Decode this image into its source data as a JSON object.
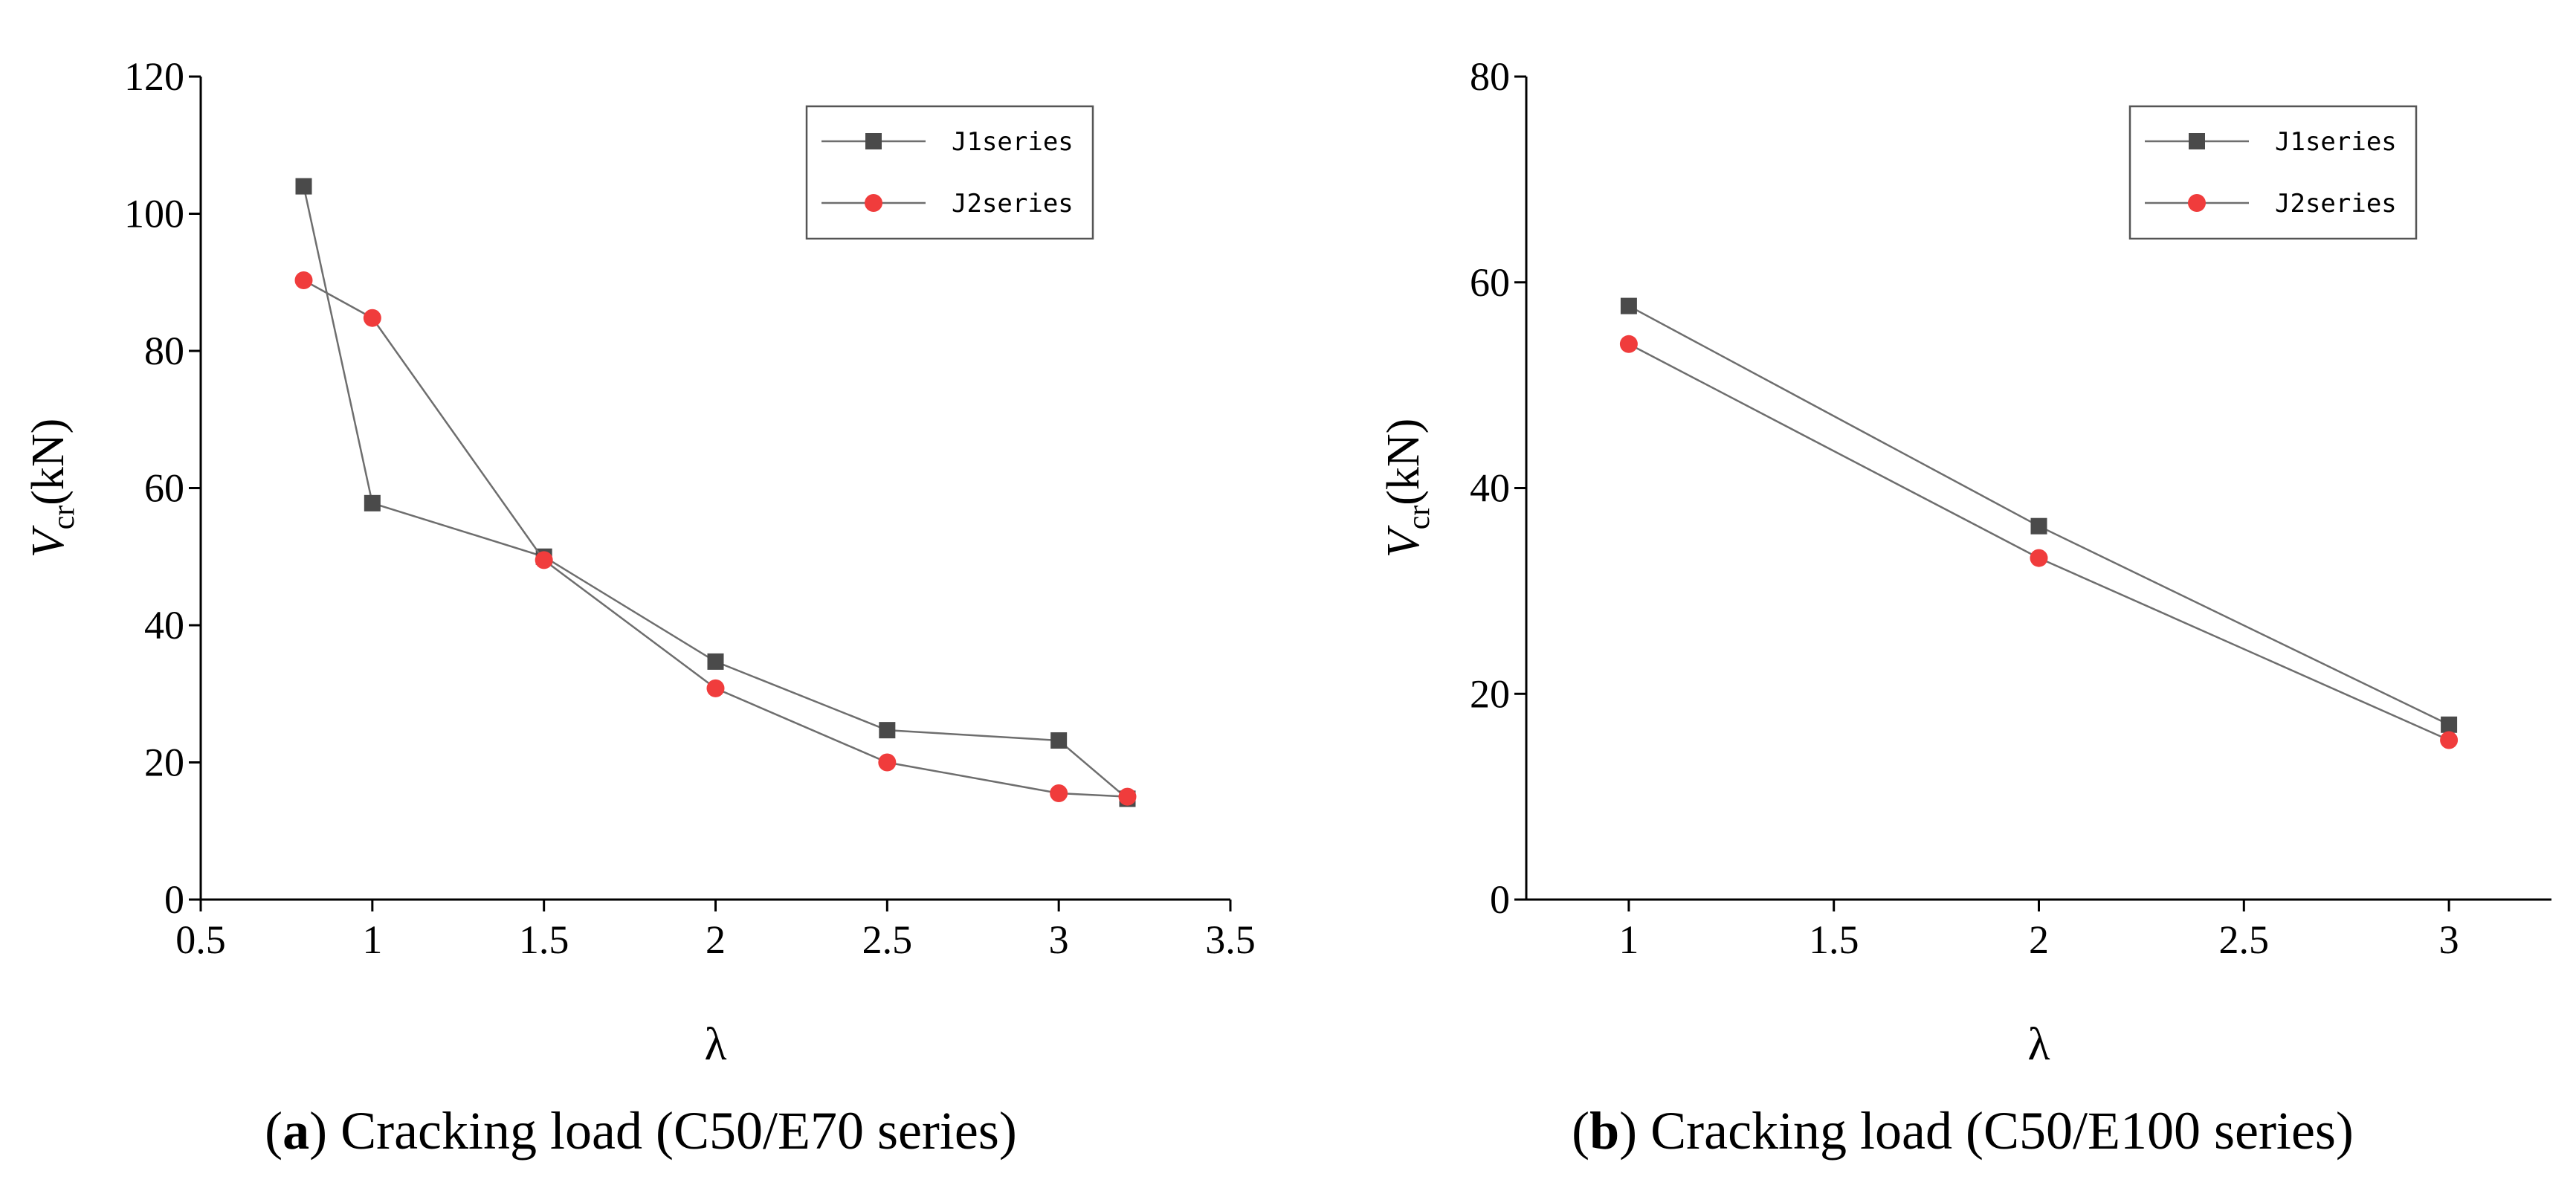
{
  "chart_data": [
    {
      "type": "line",
      "xlabel": "λ",
      "ylabel_main": "V",
      "ylabel_sub": "cr",
      "ylabel_unit": "(kN)",
      "xlim": [
        0.5,
        3.5
      ],
      "ylim": [
        0,
        120
      ],
      "xticks": [
        0.5,
        1,
        1.5,
        2,
        2.5,
        3,
        3.5
      ],
      "xtick_labels": [
        "0.5",
        "1",
        "1.5",
        "2",
        "2.5",
        "3",
        "3.5"
      ],
      "yticks": [
        0,
        20,
        40,
        60,
        80,
        100,
        120
      ],
      "ytick_labels": [
        "0",
        "20",
        "40",
        "60",
        "80",
        "100",
        "120"
      ],
      "grid": false,
      "legend_position": "top-right",
      "series": [
        {
          "name": "J1series",
          "marker": "square",
          "color": "#4a4a4a",
          "x": [
            0.8,
            1,
            1.5,
            2,
            2.5,
            3,
            3.2
          ],
          "y": [
            104,
            57.8,
            50,
            34.7,
            24.7,
            23.2,
            14.7
          ]
        },
        {
          "name": "J2series",
          "marker": "circle",
          "color": "#f03c3c",
          "x": [
            0.8,
            1,
            1.5,
            2,
            2.5,
            3,
            3.2
          ],
          "y": [
            90.3,
            84.8,
            49.5,
            30.8,
            20,
            15.5,
            15
          ]
        }
      ],
      "caption_letter": "a",
      "caption_text": "Cracking load (C50/E70 series)"
    },
    {
      "type": "line",
      "xlabel": "λ",
      "ylabel_main": "V",
      "ylabel_sub": "cr",
      "ylabel_unit": "(kN)",
      "xlim": [
        0.75,
        3.25
      ],
      "ylim": [
        0,
        80
      ],
      "xticks": [
        1,
        1.5,
        2,
        2.5,
        3
      ],
      "xtick_labels": [
        "1",
        "1.5",
        "2",
        "2.5",
        "3"
      ],
      "yticks": [
        0,
        20,
        40,
        60,
        80
      ],
      "ytick_labels": [
        "0",
        "20",
        "40",
        "60",
        "80"
      ],
      "grid": false,
      "legend_position": "top-right",
      "series": [
        {
          "name": "J1series",
          "marker": "square",
          "color": "#4a4a4a",
          "x": [
            1,
            2,
            3
          ],
          "y": [
            57.7,
            36.3,
            17
          ]
        },
        {
          "name": "J2series",
          "marker": "circle",
          "color": "#f03c3c",
          "x": [
            1,
            2,
            3
          ],
          "y": [
            54,
            33.2,
            15.5
          ]
        }
      ],
      "caption_letter": "b",
      "caption_text": "Cracking load (C50/E100 series)"
    }
  ]
}
